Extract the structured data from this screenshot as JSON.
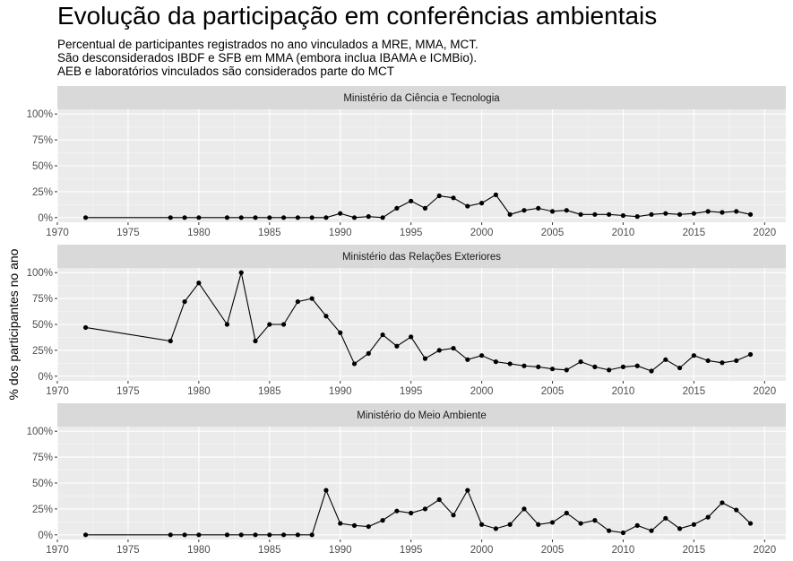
{
  "title": "Evolução da participação em conferências ambientais",
  "subtitle": [
    "Percentual de participantes registrados no ano vinculados a MRE, MMA, MCT.",
    "São desconsiderados IBDF e SFB em MMA (embora inclua IBAMA e ICMBio).",
    "AEB e laboratórios vinculados são considerados parte do MCT"
  ],
  "chart_data": {
    "type": "line",
    "ylabel": "% dos participantes no ano",
    "xlim": [
      1970,
      2021.5
    ],
    "ylim": [
      0,
      1
    ],
    "x_ticks": [
      1970,
      1975,
      1980,
      1985,
      1990,
      1995,
      2000,
      2005,
      2010,
      2015,
      2020
    ],
    "x_tick_labels": [
      "1970",
      "1975",
      "1980",
      "1985",
      "1990",
      "1995",
      "2000",
      "2005",
      "2010",
      "2015",
      "2020"
    ],
    "y_ticks": [
      0,
      0.25,
      0.5,
      0.75,
      1
    ],
    "y_tick_labels": [
      "0%",
      "25%",
      "50%",
      "75%",
      "100%"
    ],
    "grid": true,
    "markers": true,
    "x": [
      1972,
      1978,
      1979,
      1980,
      1982,
      1983,
      1984,
      1985,
      1986,
      1987,
      1988,
      1989,
      1990,
      1991,
      1992,
      1993,
      1994,
      1995,
      1996,
      1997,
      1998,
      1999,
      2000,
      2001,
      2002,
      2003,
      2004,
      2005,
      2006,
      2007,
      2008,
      2009,
      2010,
      2011,
      2012,
      2013,
      2014,
      2015,
      2016,
      2017,
      2018,
      2019
    ],
    "series": [
      {
        "name": "Ministério da Ciência e Tecnologia",
        "values": [
          0,
          0,
          0,
          0,
          0,
          0,
          0,
          0,
          0,
          0,
          0,
          0,
          0.04,
          0,
          0.01,
          0,
          0.09,
          0.16,
          0.09,
          0.21,
          0.19,
          0.11,
          0.14,
          0.22,
          0.03,
          0.07,
          0.09,
          0.06,
          0.07,
          0.03,
          0.03,
          0.03,
          0.02,
          0.01,
          0.03,
          0.04,
          0.03,
          0.04,
          0.06,
          0.05,
          0.06,
          0.03
        ]
      },
      {
        "name": "Ministério das Relações Exteriores",
        "values": [
          0.47,
          0.34,
          0.72,
          0.9,
          0.5,
          1,
          0.34,
          0.5,
          0.5,
          0.72,
          0.75,
          0.58,
          0.42,
          0.12,
          0.22,
          0.4,
          0.29,
          0.38,
          0.17,
          0.25,
          0.27,
          0.16,
          0.2,
          0.14,
          0.12,
          0.1,
          0.09,
          0.07,
          0.06,
          0.14,
          0.09,
          0.06,
          0.09,
          0.1,
          0.05,
          0.16,
          0.08,
          0.2,
          0.15,
          0.13,
          0.15,
          0.21
        ]
      },
      {
        "name": "Ministério do Meio Ambiente",
        "values": [
          0,
          0,
          0,
          0,
          0,
          0,
          0,
          0,
          0,
          0,
          0,
          0.43,
          0.11,
          0.09,
          0.08,
          0.14,
          0.23,
          0.21,
          0.25,
          0.34,
          0.19,
          0.43,
          0.1,
          0.06,
          0.1,
          0.25,
          0.1,
          0.12,
          0.21,
          0.11,
          0.14,
          0.04,
          0.02,
          0.09,
          0.04,
          0.16,
          0.06,
          0.1,
          0.17,
          0.31,
          0.24,
          0.11
        ]
      }
    ]
  }
}
